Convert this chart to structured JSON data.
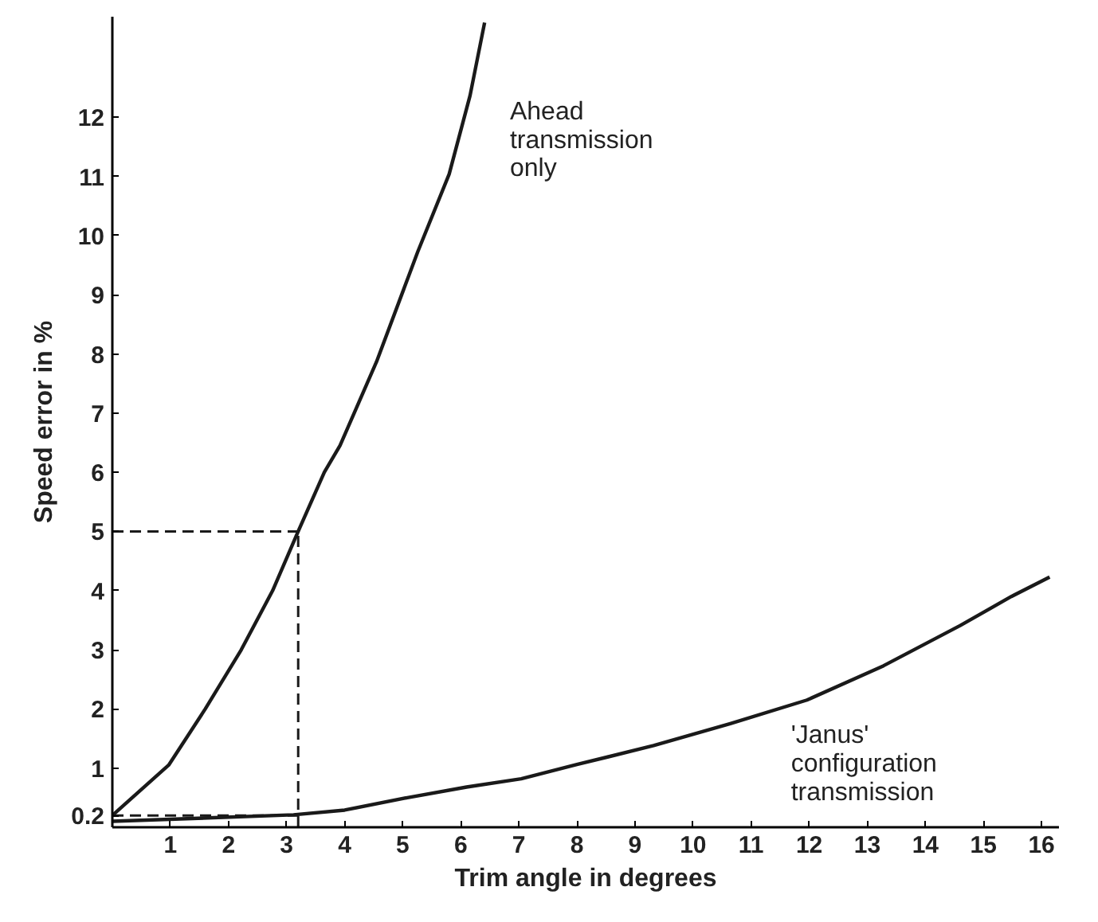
{
  "chart_data": {
    "type": "line",
    "xlabel": "Trim angle in degrees",
    "ylabel": "Speed error in %",
    "xlim": [
      0,
      16.3
    ],
    "ylim": [
      0,
      13.7
    ],
    "xticks": [
      1,
      2,
      3,
      4,
      5,
      6,
      7,
      8,
      9,
      10,
      11,
      12,
      13,
      14,
      15,
      16
    ],
    "yticks": [
      0.2,
      1,
      2,
      3,
      4,
      5,
      6,
      7,
      8,
      9,
      10,
      11,
      12
    ],
    "grid": false,
    "line_style": "solid",
    "marker": "none",
    "series": [
      {
        "name": "Ahead transmission only",
        "color": "#1a1a1a",
        "x": [
          0,
          0.97,
          1.6,
          2.22,
          2.76,
          3.2,
          3.65,
          3.92,
          4.55,
          5.26,
          5.8,
          6.16,
          6.41
        ],
        "values": [
          0.2,
          1.05,
          2.0,
          3.0,
          4.0,
          5.0,
          6.0,
          6.45,
          7.87,
          9.73,
          11.04,
          12.37,
          13.6
        ]
      },
      {
        "name": "'Janus' configuration transmission",
        "color": "#1a1a1a",
        "x": [
          0,
          3.12,
          4.0,
          5.08,
          6.1,
          7.04,
          8,
          9.32,
          10.64,
          11.96,
          13.28,
          14.6,
          15.48,
          16.14
        ],
        "values": [
          0.1,
          0.21,
          0.29,
          0.5,
          0.68,
          0.82,
          1.06,
          1.38,
          1.75,
          2.15,
          2.73,
          3.41,
          3.9,
          4.23
        ]
      }
    ],
    "ref_lines": [
      {
        "axis": "y",
        "value": 5,
        "line_style": "dashed"
      },
      {
        "axis": "y",
        "value": 0.2,
        "line_style": "dashed"
      },
      {
        "axis": "x",
        "value": 3.2,
        "line_style": "dashed"
      }
    ]
  }
}
